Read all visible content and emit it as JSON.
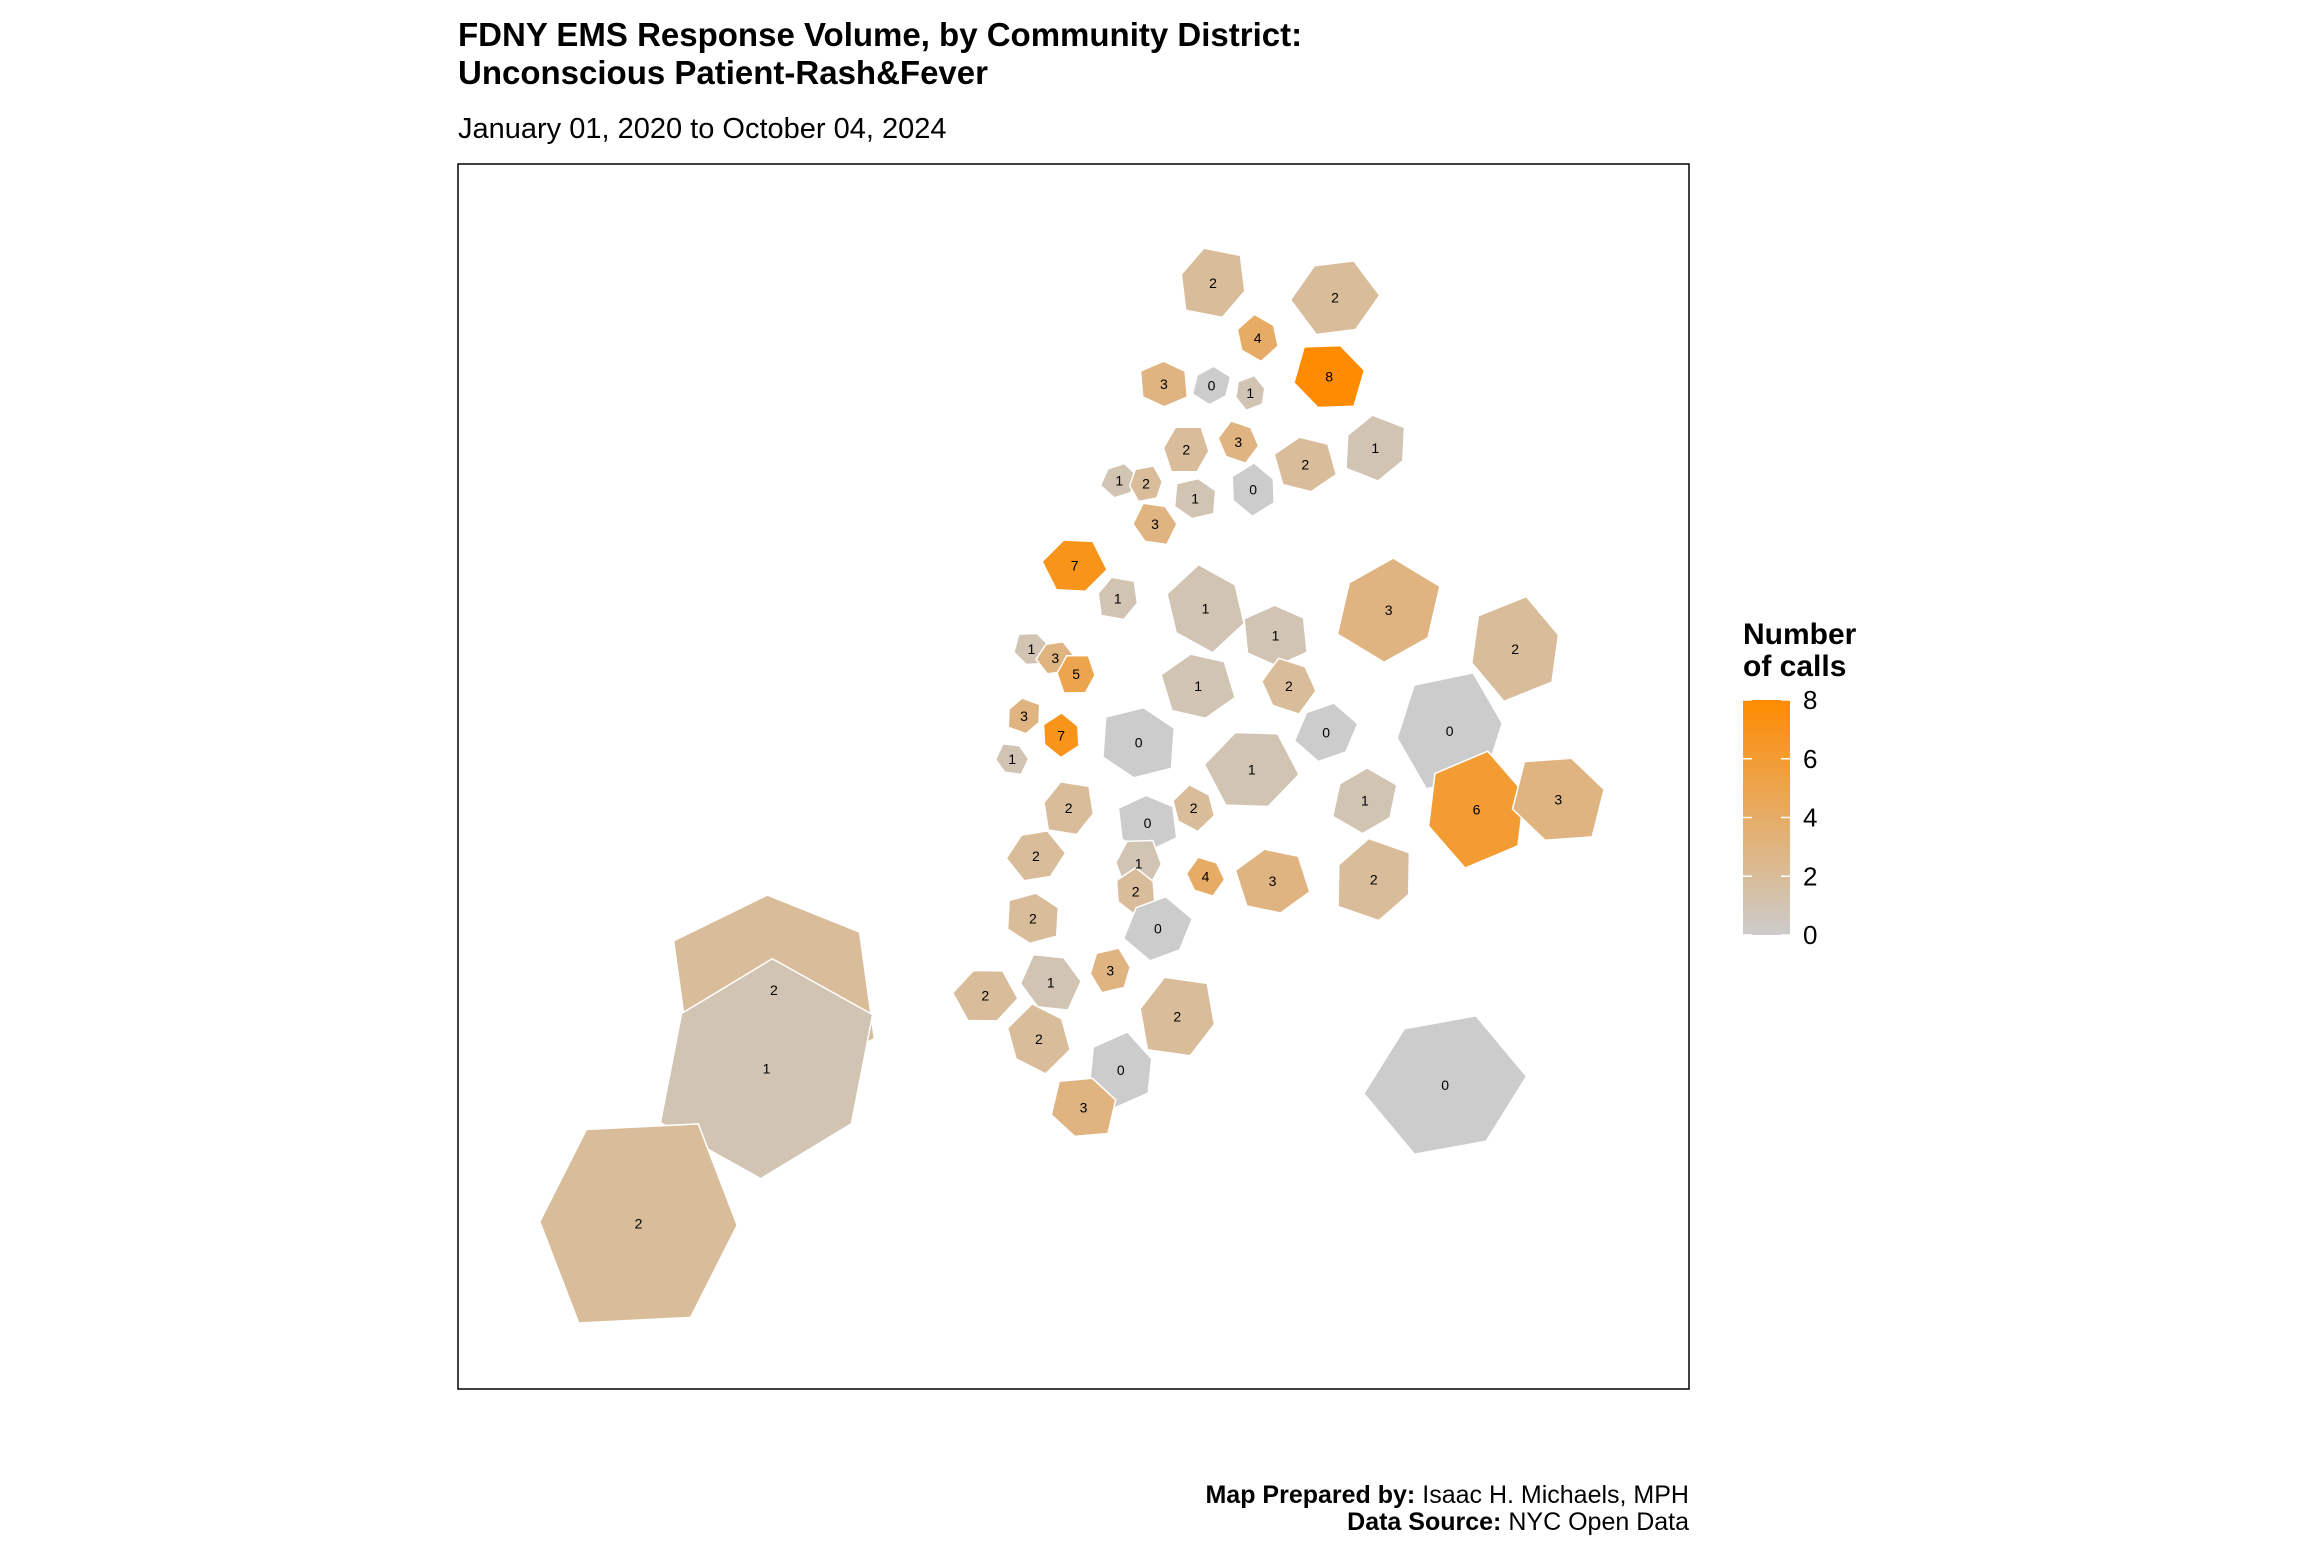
{
  "chart_data": {
    "type": "choropleth",
    "title": [
      "FDNY EMS Response Volume, by Community District:",
      "Unconscious Patient-Rash&Fever"
    ],
    "subtitle": "January 01, 2020 to October 04, 2024",
    "values": [
      2,
      4,
      3,
      0,
      1,
      8,
      2,
      2,
      3,
      2,
      1,
      0,
      1,
      1,
      2,
      3,
      7,
      1,
      1,
      1,
      3,
      2,
      1,
      3,
      5,
      2,
      1,
      3,
      7,
      0,
      0,
      0,
      1,
      1,
      2,
      2,
      0,
      1,
      6,
      3,
      2,
      1,
      4,
      3,
      2,
      2,
      2,
      0,
      3,
      1,
      2,
      2,
      2,
      2,
      1,
      0,
      3,
      0,
      2
    ],
    "legend": {
      "title": [
        "Number",
        "of calls"
      ],
      "clim": [
        0,
        8
      ],
      "ticks": [
        0,
        2,
        4,
        6,
        8
      ],
      "low_color": "#cccccc",
      "high_color": "#ff8c00"
    },
    "caption": [
      {
        "label": "Map Prepared by:",
        "text": "Isaac H. Michaels, MPH"
      },
      {
        "label": "Data Source:",
        "text": "NYC Open Data"
      }
    ]
  }
}
